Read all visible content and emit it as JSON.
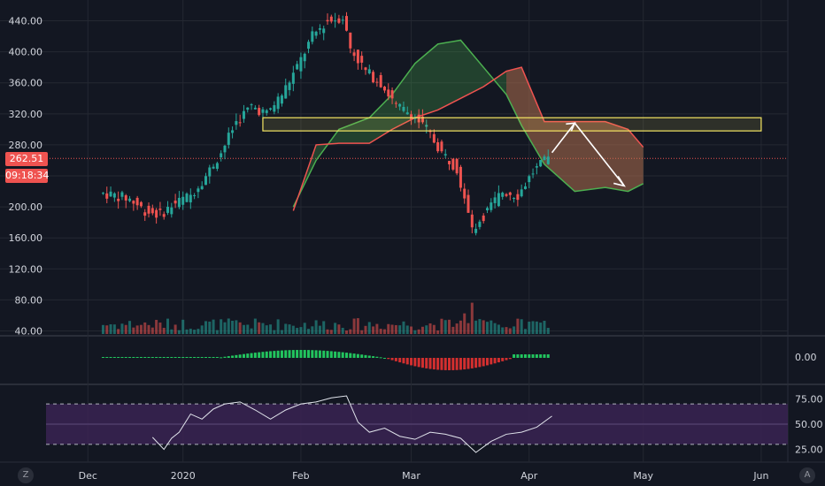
{
  "symbol_price": "262.51",
  "countdown": "09:18:34",
  "colors": {
    "background": "#131722",
    "up": "#26a69a",
    "down": "#ef5350",
    "grid": "#242832",
    "cloud_green": "#4caf50",
    "cloud_red": "#ef5350",
    "resistance_box": "#f5e663",
    "rsi_band": "#3a2352",
    "macd_up": "#22c55e",
    "macd_down": "#d32f2f"
  },
  "corner_buttons": {
    "left": "Z",
    "right": "A"
  },
  "chart_data": {
    "type": "candlestick",
    "x_axis": {
      "ticks": [
        {
          "label": "Dec",
          "day": 6
        },
        {
          "label": "2020",
          "day": 31
        },
        {
          "label": "Feb",
          "day": 62
        },
        {
          "label": "Mar",
          "day": 91
        },
        {
          "label": "Apr",
          "day": 122
        },
        {
          "label": "May",
          "day": 152
        },
        {
          "label": "Jun",
          "day": 183
        }
      ],
      "range_days": [
        -5,
        190
      ]
    },
    "price_panel": {
      "y_ticks": [
        "440.00",
        "400.00",
        "360.00",
        "320.00",
        "280.00",
        "240.00",
        "200.00",
        "160.00",
        "120.00",
        "80.00",
        "40.00"
      ],
      "ylim": [
        36,
        460
      ],
      "current_price": 262.51,
      "resistance_zone": {
        "x_from_day": 52,
        "x_to_day": 183,
        "low": 298,
        "high": 315
      },
      "close_series": [
        {
          "day": 10,
          "close": 218
        },
        {
          "day": 14,
          "close": 215
        },
        {
          "day": 18,
          "close": 210
        },
        {
          "day": 22,
          "close": 195
        },
        {
          "day": 26,
          "close": 190
        },
        {
          "day": 30,
          "close": 205
        },
        {
          "day": 34,
          "close": 215
        },
        {
          "day": 38,
          "close": 240
        },
        {
          "day": 42,
          "close": 270
        },
        {
          "day": 46,
          "close": 310
        },
        {
          "day": 50,
          "close": 330
        },
        {
          "day": 54,
          "close": 320
        },
        {
          "day": 58,
          "close": 345
        },
        {
          "day": 62,
          "close": 380
        },
        {
          "day": 66,
          "close": 420
        },
        {
          "day": 70,
          "close": 440
        },
        {
          "day": 74,
          "close": 445
        },
        {
          "day": 76,
          "close": 405
        },
        {
          "day": 80,
          "close": 375
        },
        {
          "day": 84,
          "close": 360
        },
        {
          "day": 88,
          "close": 330
        },
        {
          "day": 92,
          "close": 320
        },
        {
          "day": 96,
          "close": 300
        },
        {
          "day": 100,
          "close": 270
        },
        {
          "day": 104,
          "close": 250
        },
        {
          "day": 108,
          "close": 170
        },
        {
          "day": 112,
          "close": 195
        },
        {
          "day": 116,
          "close": 220
        },
        {
          "day": 120,
          "close": 215
        },
        {
          "day": 124,
          "close": 245
        },
        {
          "day": 128,
          "close": 262.51
        }
      ],
      "cloud": [
        {
          "day": 60,
          "a": 200,
          "b": 195
        },
        {
          "day": 66,
          "a": 260,
          "b": 280
        },
        {
          "day": 72,
          "a": 300,
          "b": 282
        },
        {
          "day": 80,
          "a": 315,
          "b": 282
        },
        {
          "day": 86,
          "a": 345,
          "b": 300
        },
        {
          "day": 92,
          "a": 385,
          "b": 315
        },
        {
          "day": 98,
          "a": 410,
          "b": 325
        },
        {
          "day": 104,
          "a": 415,
          "b": 340
        },
        {
          "day": 110,
          "a": 380,
          "b": 355
        },
        {
          "day": 116,
          "a": 345,
          "b": 375
        },
        {
          "day": 120,
          "a": 305,
          "b": 380
        },
        {
          "day": 126,
          "a": 255,
          "b": 310
        },
        {
          "day": 134,
          "a": 220,
          "b": 310
        },
        {
          "day": 142,
          "a": 225,
          "b": 310
        },
        {
          "day": 148,
          "a": 220,
          "b": 300
        },
        {
          "day": 152,
          "a": 230,
          "b": 277
        }
      ],
      "projection": [
        {
          "day": 128,
          "price": 270
        },
        {
          "day": 134,
          "price": 308
        },
        {
          "day": 147,
          "price": 227
        }
      ]
    },
    "volume_bars_note": "volume shown at bottom of price panel",
    "macd_panel": {
      "y_ticks": [
        "0.00"
      ]
    },
    "rsi_panel": {
      "y_ticks": [
        "75.00",
        "50.00",
        "25.00"
      ],
      "ylim": [
        15,
        85
      ],
      "band": [
        30,
        70
      ],
      "series": [
        {
          "day": 23,
          "v": 37
        },
        {
          "day": 26,
          "v": 25
        },
        {
          "day": 28,
          "v": 36
        },
        {
          "day": 30,
          "v": 42
        },
        {
          "day": 33,
          "v": 60
        },
        {
          "day": 36,
          "v": 55
        },
        {
          "day": 39,
          "v": 65
        },
        {
          "day": 42,
          "v": 70
        },
        {
          "day": 46,
          "v": 72
        },
        {
          "day": 50,
          "v": 64
        },
        {
          "day": 54,
          "v": 55
        },
        {
          "day": 58,
          "v": 64
        },
        {
          "day": 62,
          "v": 70
        },
        {
          "day": 66,
          "v": 72
        },
        {
          "day": 70,
          "v": 76
        },
        {
          "day": 74,
          "v": 78
        },
        {
          "day": 77,
          "v": 52
        },
        {
          "day": 80,
          "v": 42
        },
        {
          "day": 84,
          "v": 46
        },
        {
          "day": 88,
          "v": 38
        },
        {
          "day": 92,
          "v": 35
        },
        {
          "day": 96,
          "v": 42
        },
        {
          "day": 100,
          "v": 40
        },
        {
          "day": 104,
          "v": 36
        },
        {
          "day": 108,
          "v": 22
        },
        {
          "day": 112,
          "v": 33
        },
        {
          "day": 116,
          "v": 40
        },
        {
          "day": 120,
          "v": 42
        },
        {
          "day": 124,
          "v": 47
        },
        {
          "day": 128,
          "v": 58
        }
      ]
    }
  }
}
